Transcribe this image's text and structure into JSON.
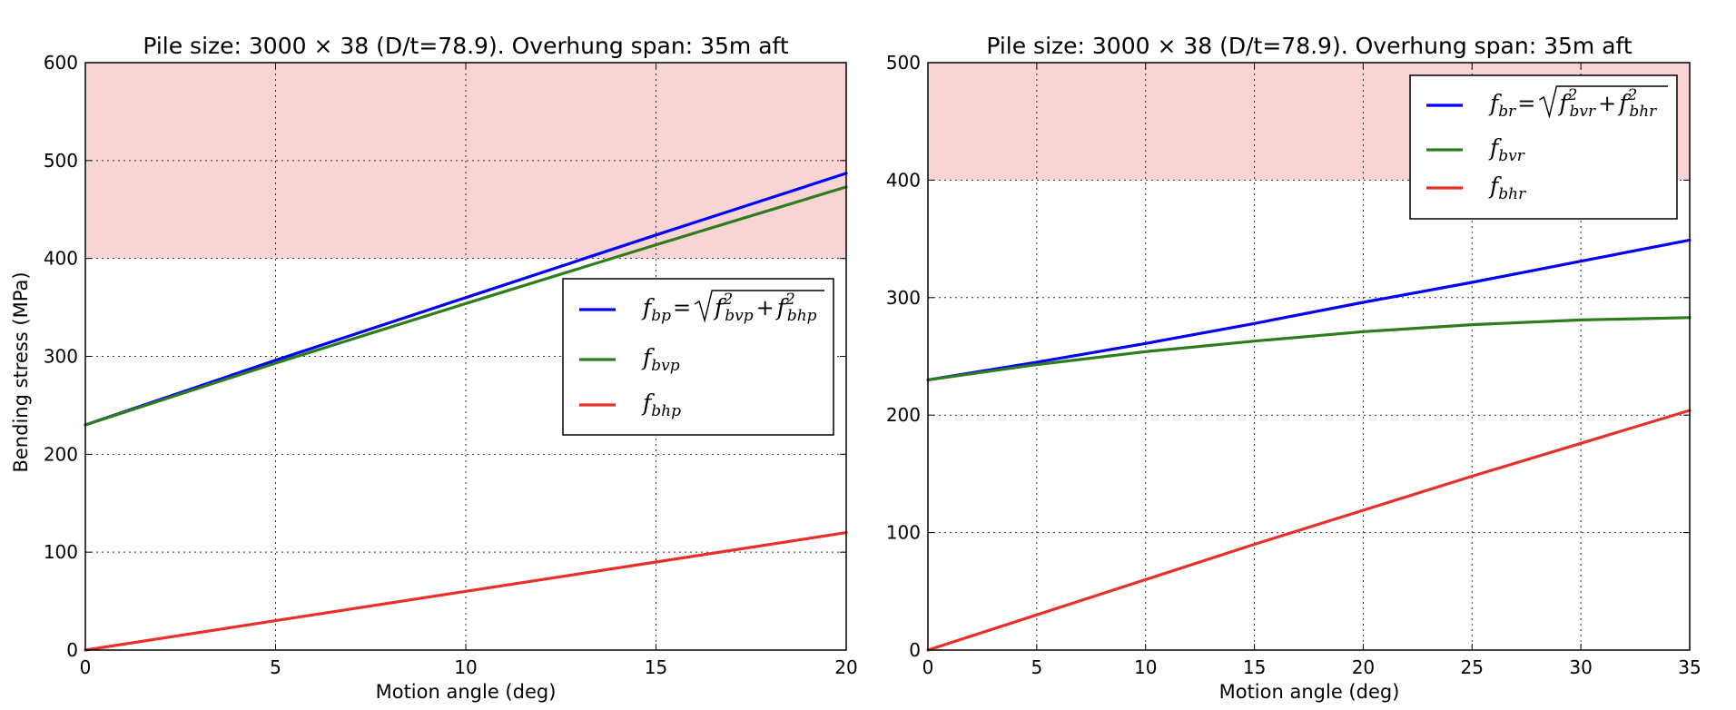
{
  "chart_data": [
    {
      "type": "line",
      "title": "Pile size: 3000 × 38 (D/t=78.9). Overhung span: 35m aft",
      "xlabel": "Motion angle (deg)",
      "ylabel": "Bending stress (MPa)",
      "xlim": [
        0,
        20
      ],
      "ylim": [
        0,
        600
      ],
      "xticks": [
        "0",
        "5",
        "10",
        "15",
        "20"
      ],
      "yticks": [
        "0",
        "100",
        "200",
        "300",
        "400",
        "500",
        "600"
      ],
      "grid": true,
      "legend_position": "center-right",
      "shaded_band": {
        "from": 400,
        "to": 600,
        "color": "#f8d4d4"
      },
      "series": [
        {
          "name": "f_bp = √(f_bvp² + f_bhp²)",
          "label_main": "f",
          "label_sub": "bp",
          "formula_terms": [
            "bvp",
            "bhp"
          ],
          "color": "#0000ff",
          "x": [
            0,
            5,
            10,
            15,
            20
          ],
          "y": [
            230,
            296,
            360,
            424,
            487
          ]
        },
        {
          "name": "f_bvp",
          "label_main": "f",
          "label_sub": "bvp",
          "color": "#2e7d1c",
          "x": [
            0,
            5,
            10,
            15,
            20
          ],
          "y": [
            230,
            293,
            354,
            414,
            473
          ]
        },
        {
          "name": "f_bhp",
          "label_main": "f",
          "label_sub": "bhp",
          "color": "#e8302a",
          "x": [
            0,
            5,
            10,
            15,
            20
          ],
          "y": [
            0,
            30,
            60,
            90,
            120
          ]
        }
      ]
    },
    {
      "type": "line",
      "title": "Pile size: 3000 × 38 (D/t=78.9). Overhung span: 35m aft",
      "xlabel": "Motion angle (deg)",
      "ylabel": "",
      "xlim": [
        0,
        35
      ],
      "ylim": [
        0,
        500
      ],
      "xticks": [
        "0",
        "5",
        "10",
        "15",
        "20",
        "25",
        "30",
        "35"
      ],
      "yticks": [
        "0",
        "100",
        "200",
        "300",
        "400",
        "500"
      ],
      "grid": true,
      "legend_position": "top-right",
      "shaded_band": {
        "from": 400,
        "to": 500,
        "color": "#f8d4d4"
      },
      "series": [
        {
          "name": "f_br = √(f_bvr² + f_bhr²)",
          "label_main": "f",
          "label_sub": "br",
          "formula_terms": [
            "bvr",
            "bhr"
          ],
          "color": "#0000ff",
          "x": [
            0,
            5,
            10,
            15,
            20,
            25,
            30,
            35
          ],
          "y": [
            230,
            245,
            261,
            278,
            296,
            313,
            331,
            349
          ]
        },
        {
          "name": "f_bvr",
          "label_main": "f",
          "label_sub": "bvr",
          "color": "#2e7d1c",
          "x": [
            0,
            5,
            10,
            15,
            20,
            25,
            30,
            35
          ],
          "y": [
            230,
            243,
            254,
            263,
            271,
            277,
            281,
            283
          ]
        },
        {
          "name": "f_bhr",
          "label_main": "f",
          "label_sub": "bhr",
          "color": "#e8302a",
          "x": [
            0,
            5,
            10,
            15,
            20,
            25,
            30,
            35
          ],
          "y": [
            0,
            30,
            60,
            90,
            119,
            148,
            176,
            204
          ]
        }
      ]
    }
  ]
}
